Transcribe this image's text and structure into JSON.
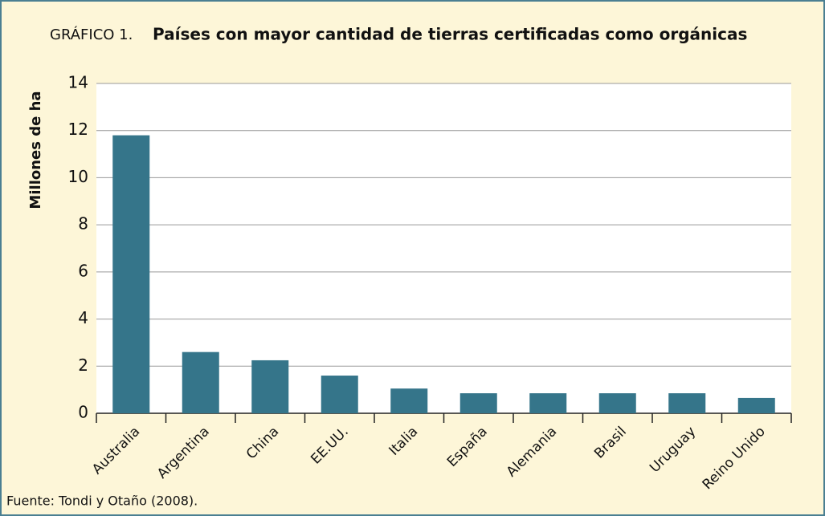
{
  "chart_data": {
    "type": "bar",
    "label": "GRÁFICO 1.",
    "title": "Países con mayor cantidad de tierras certificadas como orgánicas",
    "y_label": "Millones de ha",
    "source": "Fuente: Tondi y Otaño (2008).",
    "categories": [
      "Australia",
      "Argentina",
      "China",
      "EE.UU.",
      "Italia",
      "España",
      "Alemania",
      "Brasil",
      "Uruguay",
      "Reino Unido"
    ],
    "values": [
      11.8,
      2.6,
      2.25,
      1.6,
      1.05,
      0.85,
      0.85,
      0.85,
      0.85,
      0.65
    ],
    "color": "#35758a",
    "ylim": [
      0,
      14
    ],
    "yticks": [
      0,
      2,
      4,
      6,
      8,
      10,
      12,
      14
    ],
    "grid": true
  }
}
